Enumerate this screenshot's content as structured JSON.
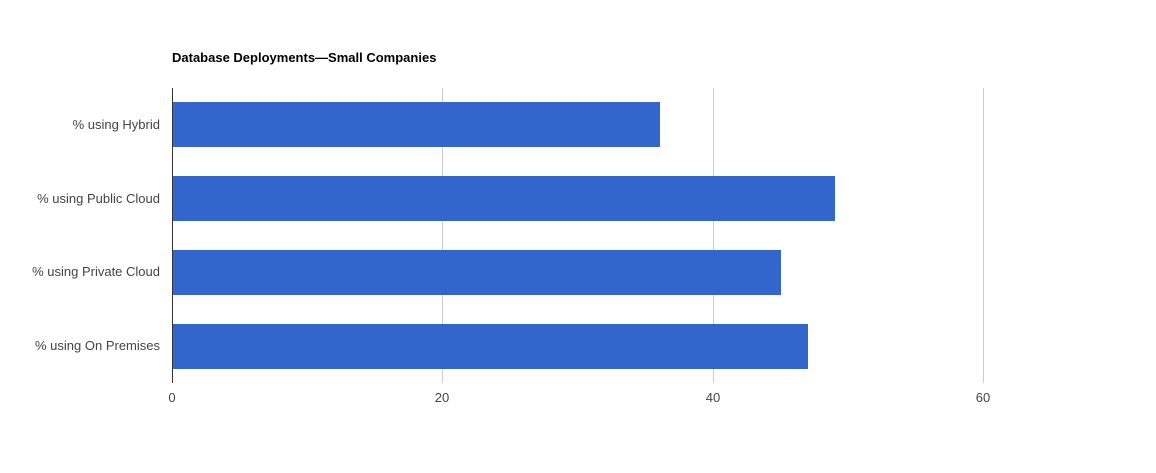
{
  "chart_data": {
    "type": "bar",
    "orientation": "horizontal",
    "title": "Database Deployments—Small Companies",
    "categories": [
      "% using Hybrid",
      "% using Public Cloud",
      "% using Private Cloud",
      "% using On Premises"
    ],
    "values": [
      36,
      49,
      45,
      47
    ],
    "xlabel": "",
    "ylabel": "",
    "xlim": [
      0,
      71.6
    ],
    "xticks": [
      0,
      20,
      40,
      60
    ],
    "grid": true,
    "legend": "none",
    "colors": {
      "bar": "#3366cc",
      "gridline": "#cccccc",
      "axis_line": "#333333",
      "tick_label": "#444444",
      "category_label": "#444444",
      "title": "#000000",
      "background": "#ffffff"
    }
  }
}
